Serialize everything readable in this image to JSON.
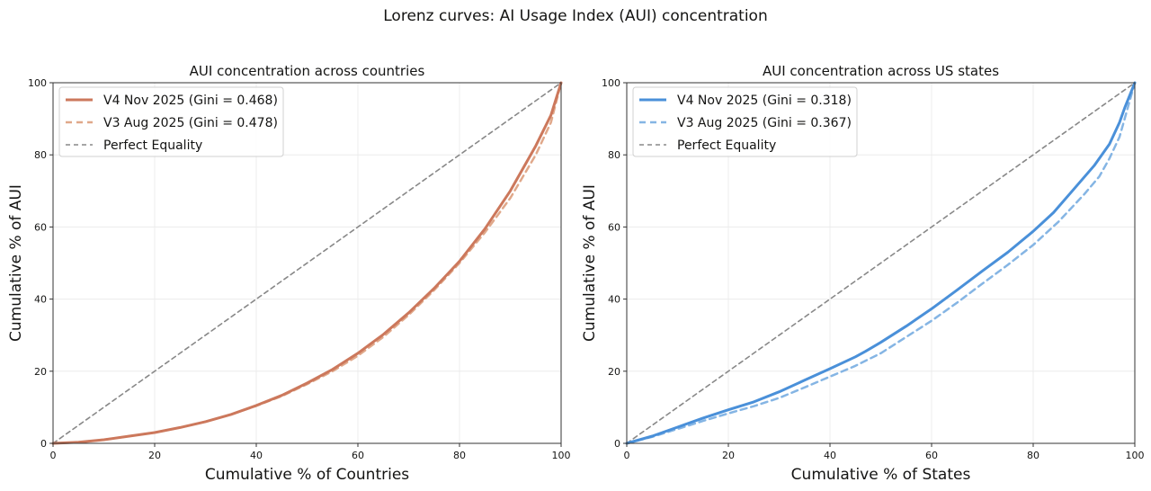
{
  "figure": {
    "suptitle": "Lorenz curves: AI Usage Index (AUI) concentration"
  },
  "colors": {
    "countries_v4": "#cc785c",
    "countries_v3": "#e0a88a",
    "states_v4": "#4a90d9",
    "states_v3": "#85b5e4",
    "equality": "#888888",
    "grid": "#ececec",
    "axis": "#333333"
  },
  "chart_data": [
    {
      "type": "line",
      "title": "AUI concentration across countries",
      "xlabel": "Cumulative % of Countries",
      "ylabel": "Cumulative % of AUI",
      "xlim": [
        0,
        100
      ],
      "ylim": [
        0,
        100
      ],
      "xticks": [
        "0",
        "20",
        "40",
        "60",
        "80",
        "100"
      ],
      "yticks": [
        "0",
        "20",
        "40",
        "60",
        "80",
        "100"
      ],
      "grid": true,
      "legend_position": "top-left",
      "series": [
        {
          "name": "V4 Nov 2025 (Gini = 0.468)",
          "style": "solid",
          "x": [
            0,
            5,
            10,
            15,
            20,
            25,
            30,
            35,
            40,
            45,
            50,
            55,
            60,
            65,
            70,
            75,
            80,
            85,
            90,
            95,
            98,
            100
          ],
          "y": [
            0,
            0.3,
            1.0,
            2.0,
            3.0,
            4.4,
            6.0,
            8.0,
            10.5,
            13.3,
            16.7,
            20.5,
            25.0,
            30.2,
            36.2,
            43.0,
            50.5,
            59.5,
            70.0,
            82.5,
            91.0,
            100
          ]
        },
        {
          "name": "V3 Aug 2025 (Gini = 0.478)",
          "style": "dashed",
          "x": [
            0,
            5,
            10,
            15,
            20,
            25,
            30,
            35,
            40,
            45,
            50,
            55,
            60,
            65,
            70,
            75,
            80,
            85,
            90,
            95,
            98,
            100
          ],
          "y": [
            0,
            0.3,
            1.0,
            2.0,
            3.0,
            4.4,
            6.0,
            8.0,
            10.4,
            13.1,
            16.4,
            20.0,
            24.3,
            29.5,
            35.6,
            42.5,
            50.0,
            58.5,
            68.0,
            80.0,
            89.0,
            100
          ]
        },
        {
          "name": "Perfect Equality",
          "style": "dashed",
          "x": [
            0,
            100
          ],
          "y": [
            0,
            100
          ]
        }
      ]
    },
    {
      "type": "line",
      "title": "AUI concentration across US states",
      "xlabel": "Cumulative % of States",
      "ylabel": "Cumulative % of AUI",
      "xlim": [
        0,
        100
      ],
      "ylim": [
        0,
        100
      ],
      "xticks": [
        "0",
        "20",
        "40",
        "60",
        "80",
        "100"
      ],
      "yticks": [
        "0",
        "20",
        "40",
        "60",
        "80",
        "100"
      ],
      "grid": true,
      "legend_position": "top-left",
      "series": [
        {
          "name": "V4 Nov 2025 (Gini = 0.318)",
          "style": "solid",
          "x": [
            0,
            5,
            10,
            15,
            20,
            25,
            30,
            35,
            40,
            45,
            47,
            50,
            55,
            60,
            65,
            70,
            75,
            80,
            84,
            88,
            92,
            95,
            97,
            98,
            100
          ],
          "y": [
            0,
            2.0,
            4.5,
            7.0,
            9.3,
            11.5,
            14.3,
            17.5,
            20.7,
            24.0,
            25.5,
            28.0,
            32.5,
            37.3,
            42.5,
            47.8,
            53.0,
            58.8,
            64.0,
            70.5,
            77.0,
            83.0,
            89.0,
            93.0,
            100
          ]
        },
        {
          "name": "V3 Aug 2025 (Gini = 0.367)",
          "style": "dashed",
          "x": [
            0,
            5,
            10,
            15,
            20,
            25,
            30,
            35,
            40,
            45,
            50,
            55,
            60,
            65,
            70,
            75,
            80,
            85,
            90,
            93,
            95,
            97,
            98,
            100
          ],
          "y": [
            0,
            1.8,
            4.0,
            6.2,
            8.3,
            10.3,
            12.6,
            15.5,
            18.5,
            21.5,
            25.0,
            29.5,
            34.0,
            39.0,
            44.3,
            49.5,
            55.0,
            61.5,
            69.0,
            74.0,
            79.0,
            85.0,
            90.0,
            100
          ]
        },
        {
          "name": "Perfect Equality",
          "style": "dashed",
          "x": [
            0,
            100
          ],
          "y": [
            0,
            100
          ]
        }
      ]
    }
  ]
}
